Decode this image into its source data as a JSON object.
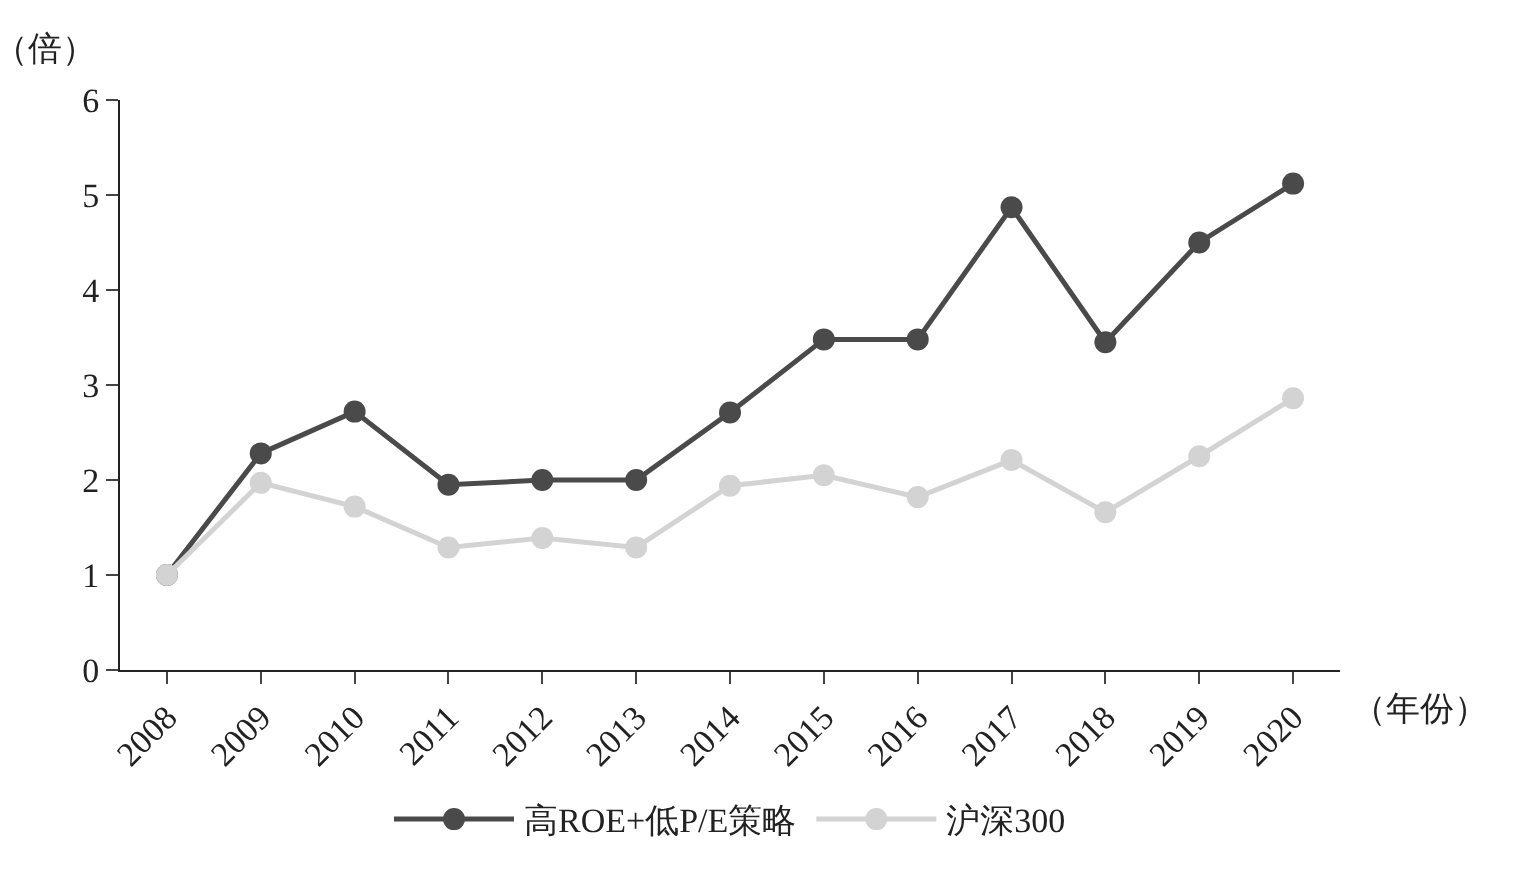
{
  "chart_data": {
    "type": "line",
    "ylabel": "（倍）",
    "xlabel": "（年份）",
    "categories": [
      "2008",
      "2009",
      "2010",
      "2011",
      "2012",
      "2013",
      "2014",
      "2015",
      "2016",
      "2017",
      "2018",
      "2019",
      "2020"
    ],
    "series": [
      {
        "name": "高ROE+低P/E策略",
        "color": "#4a4a4a",
        "values": [
          1.0,
          2.28,
          2.72,
          1.95,
          2.0,
          2.0,
          2.71,
          3.48,
          3.48,
          4.87,
          3.45,
          4.5,
          5.12
        ]
      },
      {
        "name": "沪深300",
        "color": "#d3d3d3",
        "values": [
          1.0,
          1.97,
          1.72,
          1.29,
          1.39,
          1.29,
          1.94,
          2.05,
          1.82,
          2.21,
          1.66,
          2.25,
          2.86
        ]
      }
    ],
    "ylim": [
      0,
      6
    ],
    "yticks": [
      0,
      1,
      2,
      3,
      4,
      5,
      6
    ],
    "legend": "bottom",
    "marker": "circle",
    "line_style": "solid"
  }
}
